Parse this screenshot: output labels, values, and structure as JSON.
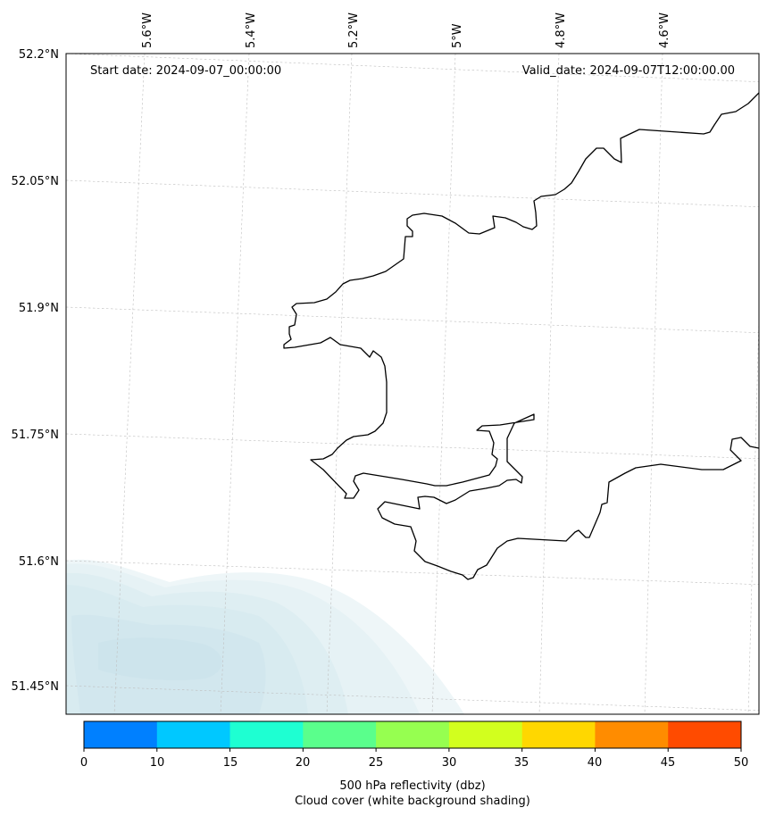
{
  "map": {
    "start_label": "Start date: 2024-09-07_00:00:00",
    "valid_label": "Valid_date: 2024-09-07T12:00:00.00",
    "lon_labels": [
      "5.6°W",
      "5.4°W",
      "5.2°W",
      "5°W",
      "4.8°W",
      "4.6°W"
    ],
    "lat_labels": [
      "52.2°N",
      "52.05°N",
      "51.9°N",
      "51.75°N",
      "51.6°N",
      "51.45°N"
    ]
  },
  "colorbar": {
    "ticks": [
      "0",
      "10",
      "15",
      "20",
      "25",
      "30",
      "35",
      "40",
      "45",
      "50"
    ],
    "colors": [
      "#0080ff",
      "#00c8ff",
      "#1effd2",
      "#5aff8c",
      "#96ff50",
      "#d2ff1e",
      "#ffd700",
      "#ff8c00",
      "#ff4b00"
    ],
    "label_line1": "500 hPa reflectivity (dbz)",
    "label_line2": "Cloud cover (white background shading)"
  },
  "legend_colors": {
    "cloud_shade": "#d4e9ef",
    "coastline": "#000000",
    "gridline": "#bfbfbf"
  }
}
